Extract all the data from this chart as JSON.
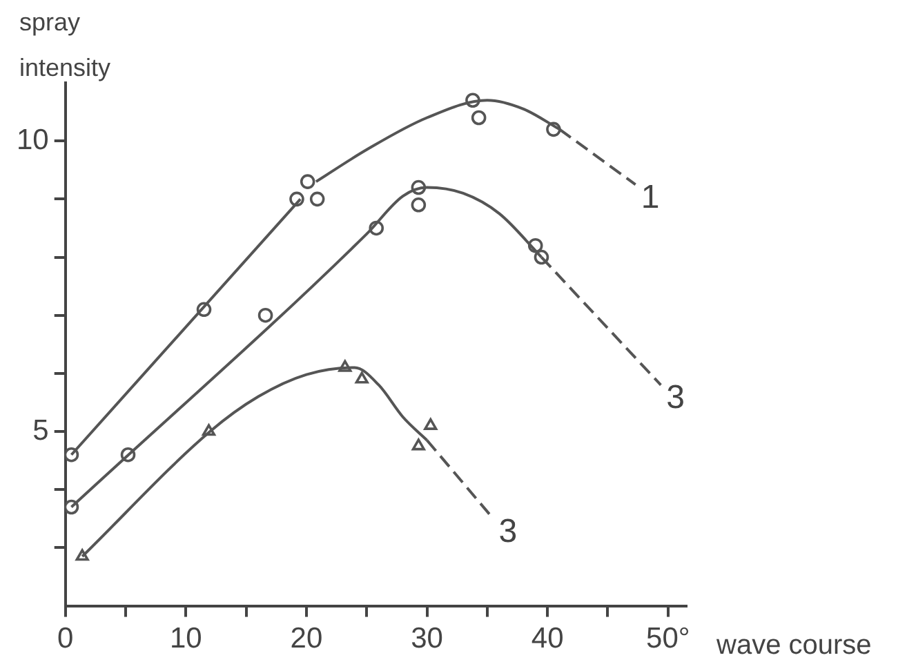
{
  "chart_data": {
    "type": "line",
    "xlabel": "wave course",
    "ylabel": "spray intensity",
    "xlim": [
      0,
      51.5
    ],
    "ylim": [
      2,
      11
    ],
    "xticks": [
      0,
      {
        "value": 5,
        "label": null
      },
      10,
      {
        "value": 15,
        "label": null
      },
      20,
      {
        "value": 25,
        "label": null
      },
      30,
      {
        "value": 35,
        "label": null
      },
      40,
      {
        "value": 45,
        "label": null
      },
      {
        "value": 50,
        "label": "50°"
      }
    ],
    "yticks": [
      {
        "value": 3,
        "label": null
      },
      {
        "value": 4,
        "label": null
      },
      5,
      {
        "value": 6,
        "label": null
      },
      {
        "value": 7,
        "label": null
      },
      {
        "value": 8,
        "label": null
      },
      {
        "value": 9,
        "label": null
      },
      10
    ],
    "grid": false,
    "legend": false,
    "series": [
      {
        "color": "#555555",
        "marker": "none",
        "line_style": "solid",
        "x": [
          0.5,
          19.5
        ],
        "values": [
          4.6,
          9.0
        ]
      },
      {
        "color": "#555555",
        "marker": "none",
        "line_style": "solid",
        "x": [
          20.8,
          25,
          30,
          35,
          38,
          41
        ],
        "values": [
          9.3,
          9.85,
          10.4,
          10.7,
          10.55,
          10.2
        ]
      },
      {
        "name": "1",
        "color": "#555555",
        "marker": "none",
        "line_style": "dashed",
        "x": [
          41,
          47.3
        ],
        "values": [
          10.2,
          9.25
        ]
      },
      {
        "type": "scatter",
        "color": "#555555",
        "marker": "circle",
        "x": [
          0.5,
          11.5,
          19.2,
          20.9,
          20.1,
          33.8,
          34.3,
          40.5
        ],
        "values": [
          4.6,
          7.1,
          9.0,
          9.0,
          9.3,
          10.7,
          10.4,
          10.2
        ]
      },
      {
        "color": "#555555",
        "marker": "none",
        "line_style": "solid",
        "x": [
          0.5,
          25,
          28,
          30,
          33,
          36,
          39.5
        ],
        "values": [
          3.7,
          8.4,
          9.05,
          9.2,
          9.1,
          8.75,
          8.0
        ]
      },
      {
        "name": "3",
        "color": "#555555",
        "marker": "none",
        "line_style": "dashed",
        "x": [
          39.5,
          49.4
        ],
        "values": [
          8.0,
          5.8
        ]
      },
      {
        "type": "scatter",
        "color": "#555555",
        "marker": "circle",
        "x": [
          0.5,
          5.2,
          16.6,
          25.8,
          29.3,
          29.3,
          39.0,
          39.5
        ],
        "values": [
          3.7,
          4.6,
          7.0,
          8.5,
          8.9,
          9.2,
          8.2,
          8.0
        ]
      },
      {
        "color": "#555555",
        "marker": "none",
        "line_style": "solid",
        "x": [
          1.4,
          12,
          16,
          20,
          24,
          26,
          28,
          30
        ],
        "values": [
          2.85,
          5.0,
          5.6,
          5.98,
          6.1,
          5.8,
          5.25,
          4.85
        ]
      },
      {
        "name": "3",
        "color": "#555555",
        "marker": "none",
        "line_style": "dashed",
        "x": [
          30,
          35.5
        ],
        "values": [
          4.85,
          3.5
        ]
      },
      {
        "type": "scatter",
        "color": "#555555",
        "marker": "triangle",
        "x": [
          1.4,
          11.9,
          23.2,
          24.6,
          30.3,
          29.3
        ],
        "values": [
          2.85,
          5.0,
          6.1,
          5.9,
          5.1,
          4.75
        ]
      }
    ]
  }
}
